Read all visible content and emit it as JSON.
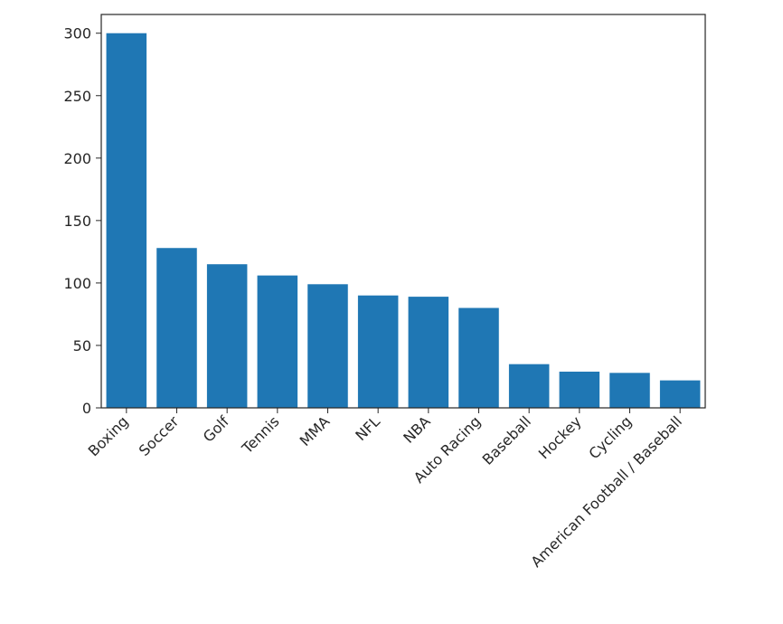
{
  "chart_data": {
    "type": "bar",
    "title": "",
    "xlabel": "",
    "ylabel": "",
    "categories": [
      "Boxing",
      "Soccer",
      "Golf",
      "Tennis",
      "MMA",
      "NFL",
      "NBA",
      "Auto Racing",
      "Baseball",
      "Hockey",
      "Cycling",
      "American Football / Baseball"
    ],
    "values": [
      300,
      128,
      115,
      106,
      99,
      90,
      89,
      80,
      35,
      29,
      28,
      22
    ],
    "ylim": [
      0,
      315
    ],
    "yticks": [
      0,
      50,
      100,
      150,
      200,
      250,
      300
    ],
    "grid": false,
    "legend": "none",
    "bar_color": "#1f77b4",
    "axis_color": "#262626"
  }
}
